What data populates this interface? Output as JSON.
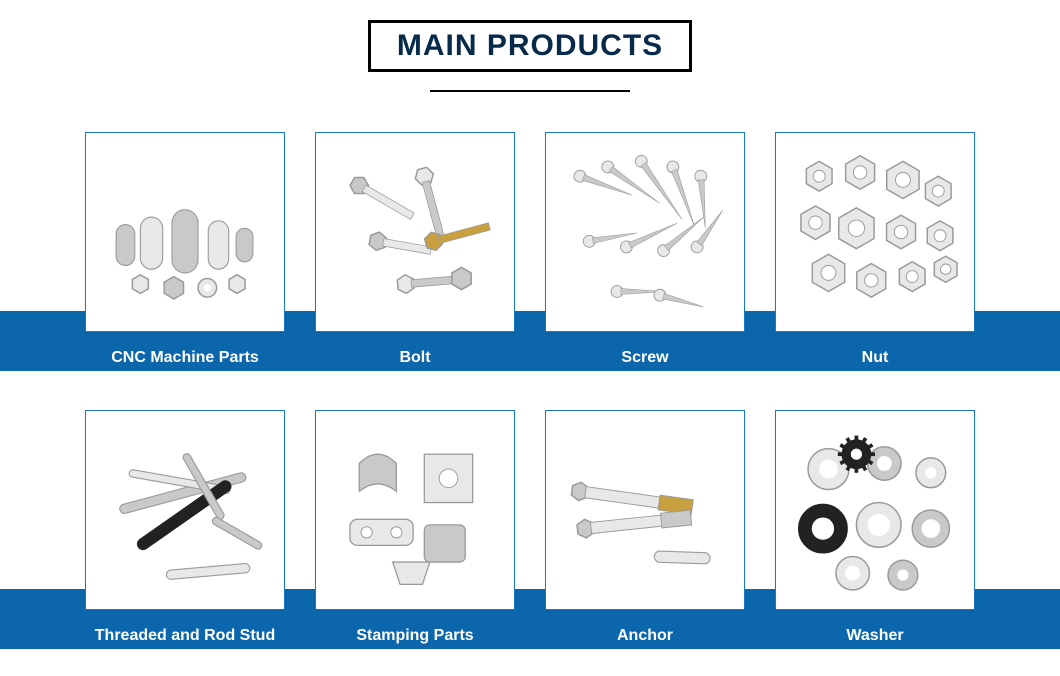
{
  "heading": "MAIN PRODUCTS",
  "colors": {
    "band": "#0b66ab",
    "card_border": "#1a7ac4",
    "heading_text": "#062a4a",
    "metal_light": "#e8e8e8",
    "metal_mid": "#c9c9c9",
    "metal_dark": "#9a9a9a",
    "brass": "#c8a040",
    "black": "#222222"
  },
  "rows": [
    {
      "items": [
        {
          "id": "cnc",
          "label": "CNC Machine Parts",
          "icon": "cnc"
        },
        {
          "id": "bolt",
          "label": "Bolt",
          "icon": "bolt"
        },
        {
          "id": "screw",
          "label": "Screw",
          "icon": "screw"
        },
        {
          "id": "nut",
          "label": "Nut",
          "icon": "nut"
        }
      ]
    },
    {
      "items": [
        {
          "id": "stud",
          "label": "Threaded and Rod Stud",
          "icon": "stud"
        },
        {
          "id": "stamp",
          "label": "Stamping Parts",
          "icon": "stamp"
        },
        {
          "id": "anchor",
          "label": "Anchor",
          "icon": "anchor"
        },
        {
          "id": "washer",
          "label": "Washer",
          "icon": "washer"
        }
      ]
    }
  ]
}
